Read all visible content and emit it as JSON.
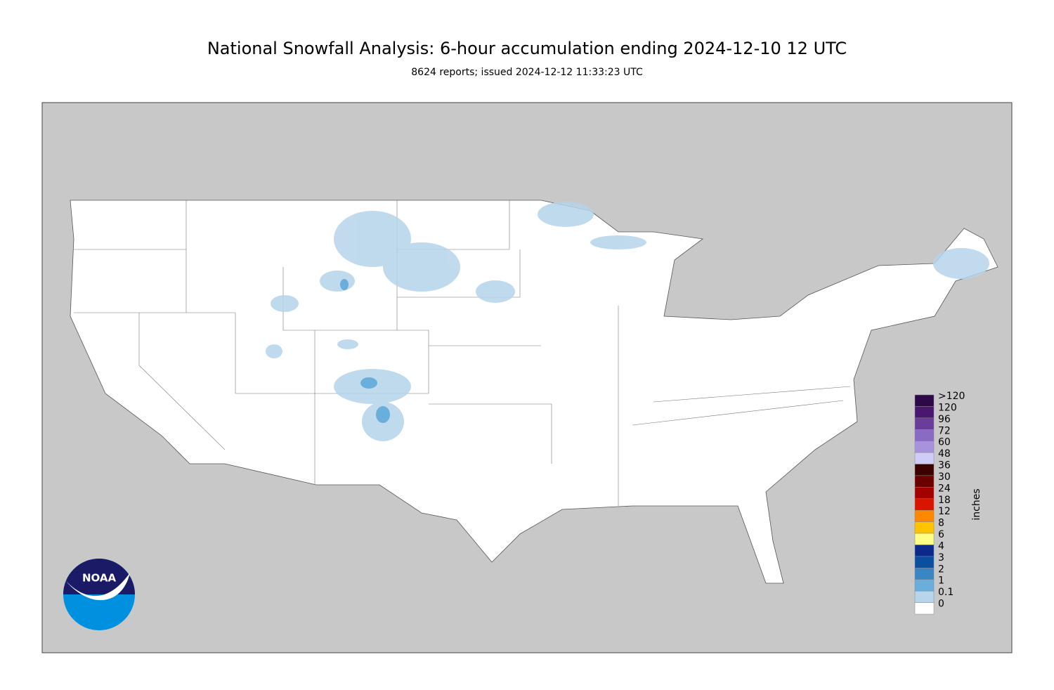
{
  "header": {
    "title": "National Snowfall Analysis: 6-hour accumulation ending 2024-12-10 12 UTC",
    "subtitle": "8624 reports; issued 2024-12-12 11:33:23 UTC"
  },
  "legend": {
    "unit": "inches",
    "entries": [
      {
        "label": ">120",
        "color": "#2d0a47"
      },
      {
        "label": "120",
        "color": "#4a1670"
      },
      {
        "label": "96",
        "color": "#6a3d9a"
      },
      {
        "label": "72",
        "color": "#8a6bc4"
      },
      {
        "label": "60",
        "color": "#a992dd"
      },
      {
        "label": "48",
        "color": "#d0ccf7"
      },
      {
        "label": "36",
        "color": "#3d0000"
      },
      {
        "label": "30",
        "color": "#6b0000"
      },
      {
        "label": "24",
        "color": "#a30000"
      },
      {
        "label": "18",
        "color": "#d91500"
      },
      {
        "label": "12",
        "color": "#ff8800"
      },
      {
        "label": "8",
        "color": "#ffc400"
      },
      {
        "label": "6",
        "color": "#ffff88"
      },
      {
        "label": "4",
        "color": "#0d2a8a"
      },
      {
        "label": "3",
        "color": "#0c4fa0"
      },
      {
        "label": "2",
        "color": "#3a85c4"
      },
      {
        "label": "1",
        "color": "#6aaedc"
      },
      {
        "label": "0.1",
        "color": "#b6d4ea"
      },
      {
        "label": "0",
        "color": "#ffffff"
      }
    ]
  },
  "logo": {
    "text": "NOAA"
  }
}
